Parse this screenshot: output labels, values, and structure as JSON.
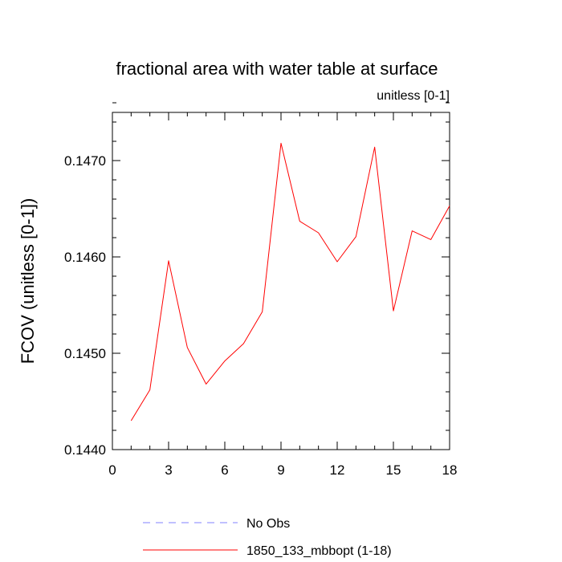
{
  "chart_data": {
    "type": "line",
    "title": "fractional area with water table at surface",
    "units_label": "unitless [0-1]",
    "ylabel": "FCOV  (unitless [0-1])",
    "xlabel": "",
    "xlim": [
      0,
      18
    ],
    "ylim": [
      0.144,
      0.1475
    ],
    "x_ticks": [
      0,
      3,
      6,
      9,
      12,
      15,
      18
    ],
    "y_ticks": [
      0.144,
      0.145,
      0.146,
      0.147
    ],
    "y_tick_labels": [
      "0.1440",
      "0.1450",
      "0.1460",
      "0.1470"
    ],
    "x_minor_step": 1,
    "y_minor_step": 0.0002,
    "grid": false,
    "legend_position": "bottom-center",
    "series": [
      {
        "name": "1850_133_mbbopt (1-18)",
        "color": "#ff0000",
        "dash": "solid",
        "x": [
          1,
          2,
          3,
          4,
          5,
          6,
          7,
          8,
          9,
          10,
          11,
          12,
          13,
          14,
          15,
          16,
          17,
          18
        ],
        "y": [
          0.1443,
          0.14462,
          0.14596,
          0.14506,
          0.14468,
          0.14492,
          0.1451,
          0.14543,
          0.14718,
          0.14637,
          0.14625,
          0.14595,
          0.14621,
          0.14714,
          0.14544,
          0.14627,
          0.14618,
          0.14653
        ]
      }
    ],
    "legend": [
      {
        "label": "No Obs",
        "color": "#8080ff",
        "dash": "dashed"
      },
      {
        "label": "1850_133_mbbopt (1-18)",
        "color": "#ff0000",
        "dash": "solid"
      }
    ]
  }
}
